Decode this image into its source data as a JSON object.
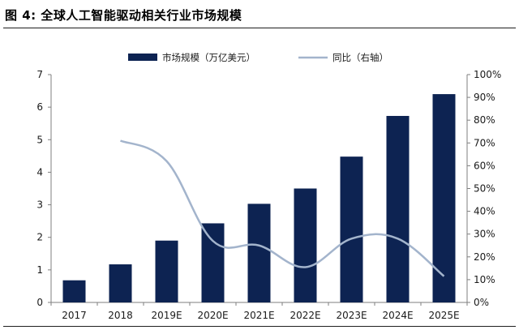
{
  "figure": {
    "title": "图 4:  全球人工智能驱动相关行业市场规模"
  },
  "chart_data": {
    "type": "bar",
    "categories": [
      "2017",
      "2018",
      "2019E",
      "2020E",
      "2021E",
      "2022E",
      "2023E",
      "2024E",
      "2025E"
    ],
    "series": [
      {
        "name": "市场规模（万亿美元）",
        "type": "bar",
        "axis": "left",
        "color": "#0d2352",
        "values": [
          0.68,
          1.17,
          1.9,
          2.43,
          3.03,
          3.5,
          4.48,
          5.73,
          6.4
        ]
      },
      {
        "name": "同比（右轴）",
        "type": "line",
        "axis": "right",
        "color": "#a3b4cc",
        "values": [
          null,
          0.71,
          0.62,
          0.27,
          0.25,
          0.155,
          0.28,
          0.28,
          0.115
        ]
      }
    ],
    "y_left": {
      "range": [
        0,
        7
      ],
      "ticks": [
        "0",
        "1",
        "2",
        "3",
        "4",
        "5",
        "6",
        "7"
      ]
    },
    "y_right": {
      "range": [
        0,
        1
      ],
      "ticks": [
        "0%",
        "10%",
        "20%",
        "30%",
        "40%",
        "50%",
        "60%",
        "70%",
        "80%",
        "90%",
        "100%"
      ]
    },
    "grid": false,
    "legend_position": "top"
  }
}
